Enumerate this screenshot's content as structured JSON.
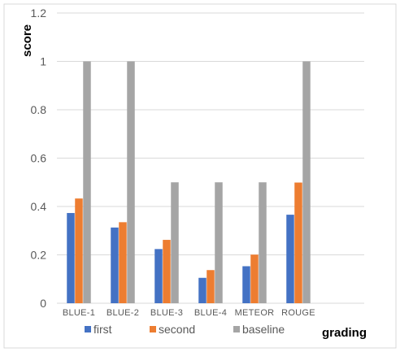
{
  "chart_data": {
    "type": "bar",
    "categories": [
      "BLUE-1",
      "BLUE-2",
      "BLUE-3",
      "BLUE-4",
      "METEOR",
      "ROUGE"
    ],
    "series": [
      {
        "name": "first",
        "values": [
          0.373,
          0.313,
          0.224,
          0.105,
          0.153,
          0.366
        ],
        "color": "#4472C4"
      },
      {
        "name": "second",
        "values": [
          0.433,
          0.335,
          0.262,
          0.137,
          0.201,
          0.499
        ],
        "color": "#ED7D31"
      },
      {
        "name": "baseline",
        "values": [
          1,
          1,
          0.5,
          0.5,
          0.5,
          1
        ],
        "color": "#A5A5A5"
      }
    ],
    "y_ticks": [
      "0",
      "0.2",
      "0.4",
      "0.6",
      "0.8",
      "1",
      "1.2"
    ],
    "ylim": [
      0,
      1.2
    ],
    "ylabel": "score",
    "xlabel": "grading",
    "grid": true,
    "legend_position": "bottom",
    "colors": {
      "gridline": "#D9D9D9",
      "tick_text": "#595959",
      "frame": "#D9D9D9"
    }
  }
}
